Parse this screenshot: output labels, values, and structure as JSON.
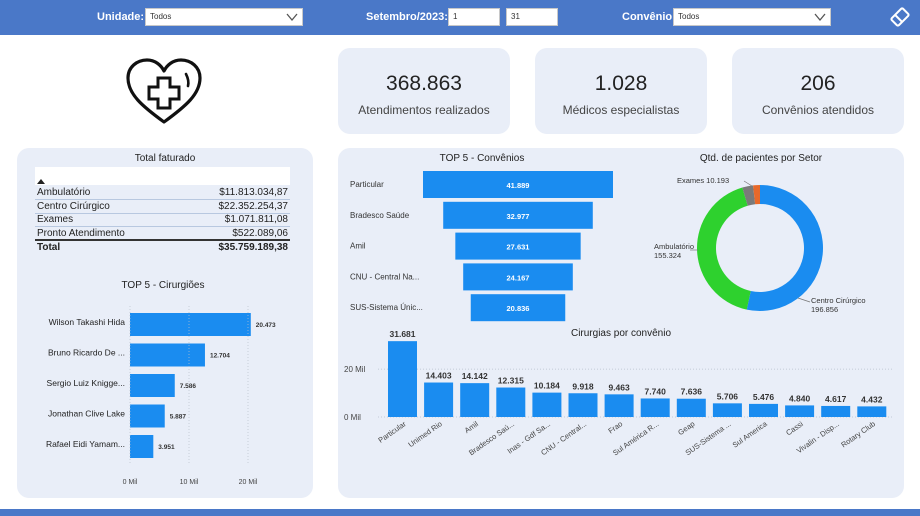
{
  "filters": {
    "unidade_label": "Unidade:",
    "unidade_value": "Todos",
    "periodo_label": "Setembro/2023:",
    "periodo_start": "1",
    "periodo_end": "31",
    "convenio_label": "Convênio:",
    "convenio_value": "Todos"
  },
  "kpis": [
    {
      "value": "368.863",
      "label": "Atendimentos realizados"
    },
    {
      "value": "1.028",
      "label": "Médicos especialistas"
    },
    {
      "value": "206",
      "label": "Convênios atendidos"
    }
  ],
  "colors": {
    "bar": "#1a8cf0",
    "header": "#4a78c8",
    "panel": "#e9eef8",
    "green": "#2ed12e",
    "gray": "#7a7a7a",
    "orange": "#e8692a"
  },
  "total_faturado": {
    "title": "Total faturado",
    "rows": [
      {
        "label": "Ambulatório",
        "value": "$11.813.034,87"
      },
      {
        "label": "Centro Cirúrgico",
        "value": "$22.352.254,37"
      },
      {
        "label": "Exames",
        "value": "$1.071.811,08"
      },
      {
        "label": "Pronto Atendimento",
        "value": "$522.089,06"
      }
    ],
    "total_label": "Total",
    "total_value": "$35.759.189,38"
  },
  "chart_data": [
    {
      "type": "bar",
      "orientation": "horizontal",
      "title": "TOP 5 - Cirurgiões",
      "categories": [
        "Wilson Takashi Hida",
        "Bruno Ricardo De ...",
        "Sergio Luiz Knigge...",
        "Jonathan Clive Lake",
        "Rafael Eidi Yamam..."
      ],
      "values": [
        20473,
        12704,
        7586,
        5887,
        3951
      ],
      "value_labels": [
        "20.473",
        "12.704",
        "7.586",
        "5.887",
        "3.951"
      ],
      "xticks": [
        "0 Mil",
        "10 Mil",
        "20 Mil"
      ],
      "xlim": [
        0,
        20000
      ]
    },
    {
      "type": "bar",
      "orientation": "funnel",
      "title": "TOP 5 - Convênios",
      "categories": [
        "Particular",
        "Bradesco Saúde",
        "Amil",
        "CNU - Central Na...",
        "SUS-Sistema Únic..."
      ],
      "values": [
        41889,
        32977,
        27631,
        24167,
        20836
      ],
      "value_labels": [
        "41.889",
        "32.977",
        "27.631",
        "24.167",
        "20.836"
      ]
    },
    {
      "type": "pie",
      "title": "Qtd. de pacientes por Setor",
      "donut": true,
      "slices": [
        {
          "name": "Centro Cirúrgico",
          "value": 196856,
          "label": "196.856",
          "color": "#1a8cf0"
        },
        {
          "name": "Ambulatório",
          "value": 155324,
          "label": "155.324",
          "color": "#2ed12e"
        },
        {
          "name": "Exames",
          "value": 10193,
          "label": "10.193",
          "color": "#7a7a7a"
        },
        {
          "name": "Pronto Atendimento",
          "value": 6490,
          "label": "",
          "color": "#e8692a"
        }
      ]
    },
    {
      "type": "bar",
      "title": "Cirurgias por convênio",
      "categories": [
        "Particular",
        "Unimed Rio",
        "Amil",
        "Bradesco Saú...",
        "Inas - Gdf Sa...",
        "CNU - Central...",
        "Frao",
        "Sul América R...",
        "Geap",
        "SUS-Sistema ...",
        "Sul America",
        "Cassi",
        "Vivalin - Disp...",
        "Rotary Club"
      ],
      "values": [
        31681,
        14403,
        14142,
        12315,
        10184,
        9918,
        9463,
        7740,
        7636,
        5706,
        5476,
        4840,
        4617,
        4432
      ],
      "value_labels": [
        "31.681",
        "14.403",
        "14.142",
        "12.315",
        "10.184",
        "9.918",
        "9.463",
        "7.740",
        "7.636",
        "5.706",
        "5.476",
        "4.840",
        "4.617",
        "4.432"
      ],
      "yticks": [
        "0 Mil",
        "20 Mil"
      ],
      "ylim": [
        0,
        33000
      ]
    }
  ]
}
